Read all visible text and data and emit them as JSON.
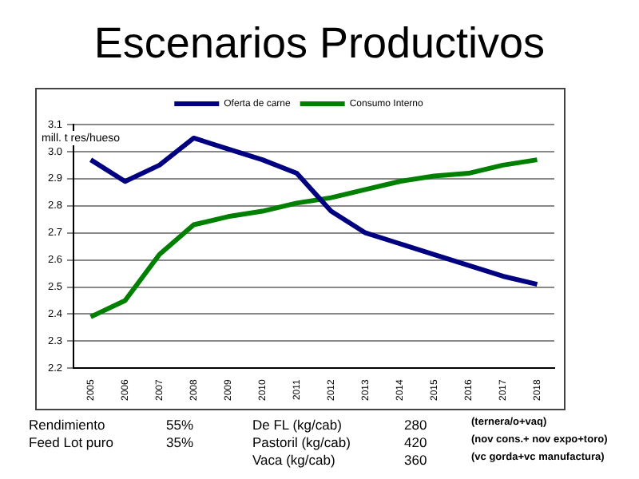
{
  "chart_data": {
    "type": "line",
    "title": "Escenarios Productivos",
    "ylabel": "mill. t res/hueso",
    "categories": [
      "2005",
      "2006",
      "2007",
      "2008",
      "2009",
      "2010",
      "2011",
      "2012",
      "2013",
      "2014",
      "2015",
      "2016",
      "2017",
      "2018"
    ],
    "series": [
      {
        "name": "Oferta de carne",
        "color": "#000080",
        "values": [
          2.97,
          2.89,
          2.95,
          3.05,
          3.01,
          2.97,
          2.92,
          2.78,
          2.7,
          2.66,
          2.62,
          2.58,
          2.54,
          2.51
        ]
      },
      {
        "name": "Consumo Interno",
        "color": "#008000",
        "values": [
          2.39,
          2.45,
          2.62,
          2.73,
          2.76,
          2.78,
          2.81,
          2.83,
          2.86,
          2.89,
          2.91,
          2.92,
          2.95,
          2.97
        ]
      }
    ],
    "ylim": [
      2.2,
      3.1
    ],
    "yticks": [
      2.2,
      2.3,
      2.4,
      2.5,
      2.6,
      2.7,
      2.8,
      2.9,
      {
        "value": 3,
        "label": "3.0"
      },
      3.1
    ],
    "grid": "y",
    "legend": "top",
    "marker": "none",
    "line_style": "solid",
    "annotations": [
      "Rendimiento",
      "55%",
      "Feed Lot puro",
      "35%",
      "De FL (kg/cab)",
      "280",
      "(ternera/o+vaq)",
      "Pastoril (kg/cab)",
      "420",
      "(nov cons.+ nov expo+toro)",
      "Vaca (kg/cab)",
      "360",
      "(vc gorda+vc manufactura)"
    ]
  }
}
